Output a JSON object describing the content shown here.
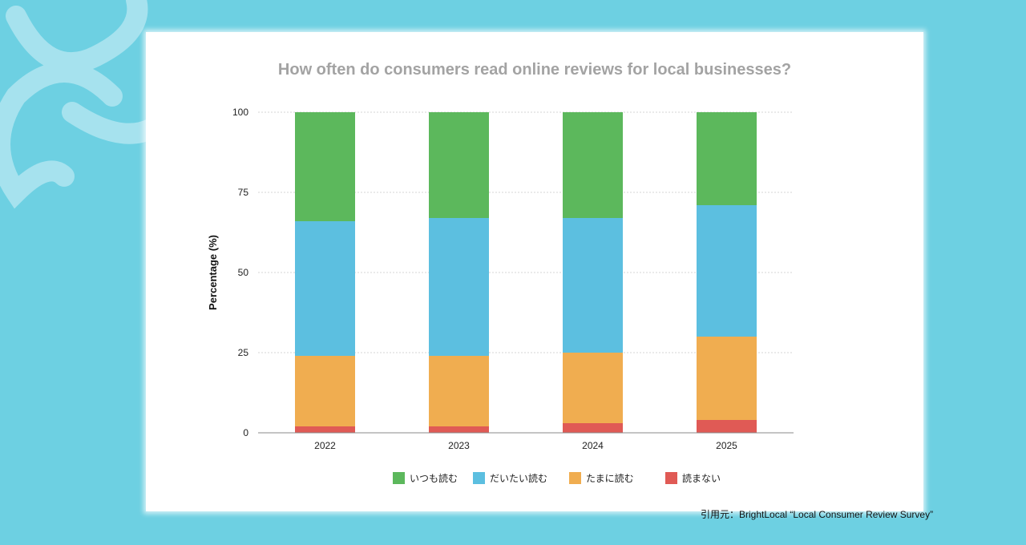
{
  "chart_data": {
    "type": "bar",
    "stacked": true,
    "title": "How often do consumers read online reviews for local businesses?",
    "ylabel": "Percentage (%)",
    "xlabel": "",
    "ylim": [
      0,
      100
    ],
    "yticks": [
      0,
      25,
      50,
      75,
      100
    ],
    "grid": true,
    "legend_position": "bottom",
    "categories": [
      "2022",
      "2023",
      "2024",
      "2025"
    ],
    "series": [
      {
        "name": "読まない",
        "color": "#e05a55",
        "values": [
          2,
          2,
          3,
          4
        ]
      },
      {
        "name": "たまに読む",
        "color": "#f0ad50",
        "values": [
          22,
          22,
          22,
          26
        ]
      },
      {
        "name": "だいたい読む",
        "color": "#5cbfe0",
        "values": [
          42,
          43,
          42,
          41
        ]
      },
      {
        "name": "いつも読む",
        "color": "#5cb85c",
        "values": [
          34,
          33,
          33,
          29
        ]
      }
    ],
    "legend_order": [
      "いつも読む",
      "だいたい読む",
      "たまに読む",
      "読まない"
    ]
  },
  "source_text": "引用元：BrightLocal “Local Consumer Review Survey”"
}
